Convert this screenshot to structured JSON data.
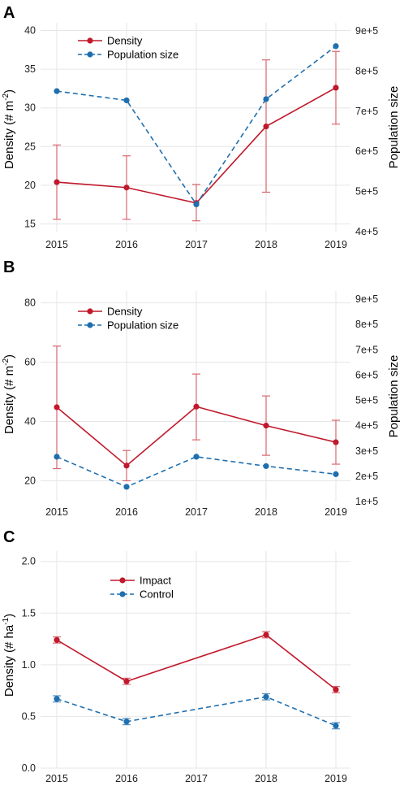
{
  "colors": {
    "red": "#c0192c",
    "blue": "#1f6fae",
    "err_red": "#d9676f",
    "err_blue": "#5a8fc0"
  },
  "chart_data": [
    {
      "panel": "A",
      "type": "line",
      "categories": [
        "2015",
        "2016",
        "2017",
        "2018",
        "2019"
      ],
      "ylabel_main": "Density (# m",
      "ylabel_sup": "-2",
      "ylabel_end": ")",
      "ylabel_right": "Population size",
      "ylim": [
        14,
        41
      ],
      "yticks": [
        15,
        20,
        25,
        30,
        35,
        40
      ],
      "ytick_labels": [
        "15",
        "20",
        "25",
        "30",
        "35",
        "40"
      ],
      "y2lim": [
        400000,
        900000
      ],
      "y2ticks": [
        400000,
        500000,
        600000,
        700000,
        800000,
        900000
      ],
      "y2tick_labels": [
        "4e+5",
        "5e+5",
        "6e+5",
        "7e+5",
        "8e+5",
        "9e+5"
      ],
      "series": [
        {
          "name": "Density",
          "axis": "left",
          "style": "solid",
          "values": [
            20.4,
            19.7,
            17.7,
            27.6,
            32.6
          ],
          "lower": [
            15.6,
            15.6,
            15.4,
            19.1,
            27.9
          ],
          "upper": [
            25.2,
            23.8,
            20.1,
            36.2,
            37.3
          ]
        },
        {
          "name": "Population size",
          "axis": "right",
          "style": "dashed",
          "values": [
            750000,
            727000,
            468000,
            730000,
            862000
          ]
        }
      ]
    },
    {
      "panel": "B",
      "type": "line",
      "categories": [
        "2015",
        "2016",
        "2017",
        "2018",
        "2019"
      ],
      "ylabel_main": "Density (# m",
      "ylabel_sup": "-2",
      "ylabel_end": ")",
      "ylabel_right": "Population size",
      "ylim": [
        13,
        84
      ],
      "yticks": [
        20,
        40,
        60,
        80
      ],
      "ytick_labels": [
        "20",
        "40",
        "60",
        "80"
      ],
      "y2lim": [
        100000,
        900000
      ],
      "y2ticks": [
        100000,
        200000,
        300000,
        400000,
        500000,
        600000,
        700000,
        800000,
        900000
      ],
      "y2tick_labels": [
        "1e+5",
        "2e+5",
        "3e+5",
        "4e+5",
        "5e+5",
        "6e+5",
        "7e+5",
        "8e+5",
        "9e+5"
      ],
      "series": [
        {
          "name": "Density",
          "axis": "left",
          "style": "solid",
          "values": [
            44.8,
            25.1,
            45.0,
            38.6,
            33.0
          ],
          "lower": [
            24.1,
            20.0,
            33.8,
            28.6,
            25.6
          ],
          "upper": [
            65.4,
            30.2,
            56.0,
            48.6,
            40.4
          ]
        },
        {
          "name": "Population size",
          "axis": "right",
          "style": "dashed",
          "values": [
            277000,
            158000,
            277000,
            240000,
            208000
          ]
        }
      ]
    },
    {
      "panel": "C",
      "type": "line",
      "categories": [
        "2015",
        "2016",
        "2017",
        "2018",
        "2019"
      ],
      "ylabel_main": "Density (# ha",
      "ylabel_sup": "-1",
      "ylabel_end": ")",
      "ylim": [
        0,
        2.1
      ],
      "yticks": [
        0,
        0.5,
        1.0,
        1.5,
        2.0
      ],
      "ytick_labels": [
        "0.0",
        "0.5",
        "1.0",
        "1.5",
        "2.0"
      ],
      "series": [
        {
          "name": "Impact",
          "style": "solid",
          "x": [
            "2015",
            "2016",
            "2018",
            "2019"
          ],
          "values": [
            1.24,
            0.84,
            1.29,
            0.76
          ],
          "lower": [
            1.21,
            0.81,
            1.26,
            0.73
          ],
          "upper": [
            1.27,
            0.87,
            1.32,
            0.79
          ]
        },
        {
          "name": "Control",
          "style": "dashed",
          "x": [
            "2015",
            "2016",
            "2018",
            "2019"
          ],
          "values": [
            0.67,
            0.45,
            0.69,
            0.41
          ],
          "lower": [
            0.64,
            0.42,
            0.66,
            0.38
          ],
          "upper": [
            0.7,
            0.48,
            0.72,
            0.44
          ]
        }
      ]
    }
  ]
}
